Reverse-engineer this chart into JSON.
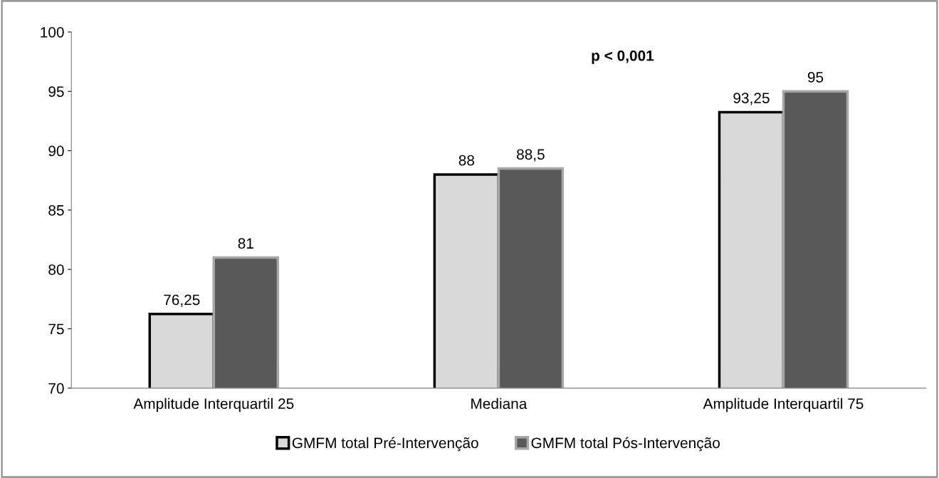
{
  "chart_data": {
    "type": "bar",
    "categories": [
      "Amplitude Interquartil 25",
      "Mediana",
      "Amplitude Interquartil 75"
    ],
    "series": [
      {
        "name": "GMFM total Pré-Intervenção",
        "color": "#d9d9d9",
        "values": [
          76.25,
          88,
          93.25
        ],
        "value_labels": [
          "76,25",
          "88",
          "93,25"
        ]
      },
      {
        "name": "GMFM total Pós-Intervenção",
        "color": "#595959",
        "values": [
          81,
          88.5,
          95
        ],
        "value_labels": [
          "81",
          "88,5",
          "95"
        ]
      }
    ],
    "ylim": [
      70,
      100
    ],
    "yticks": [
      70,
      75,
      80,
      85,
      90,
      95,
      100
    ],
    "annotations": [
      "p < 0,001"
    ],
    "grid": false,
    "legend": "bottom"
  }
}
